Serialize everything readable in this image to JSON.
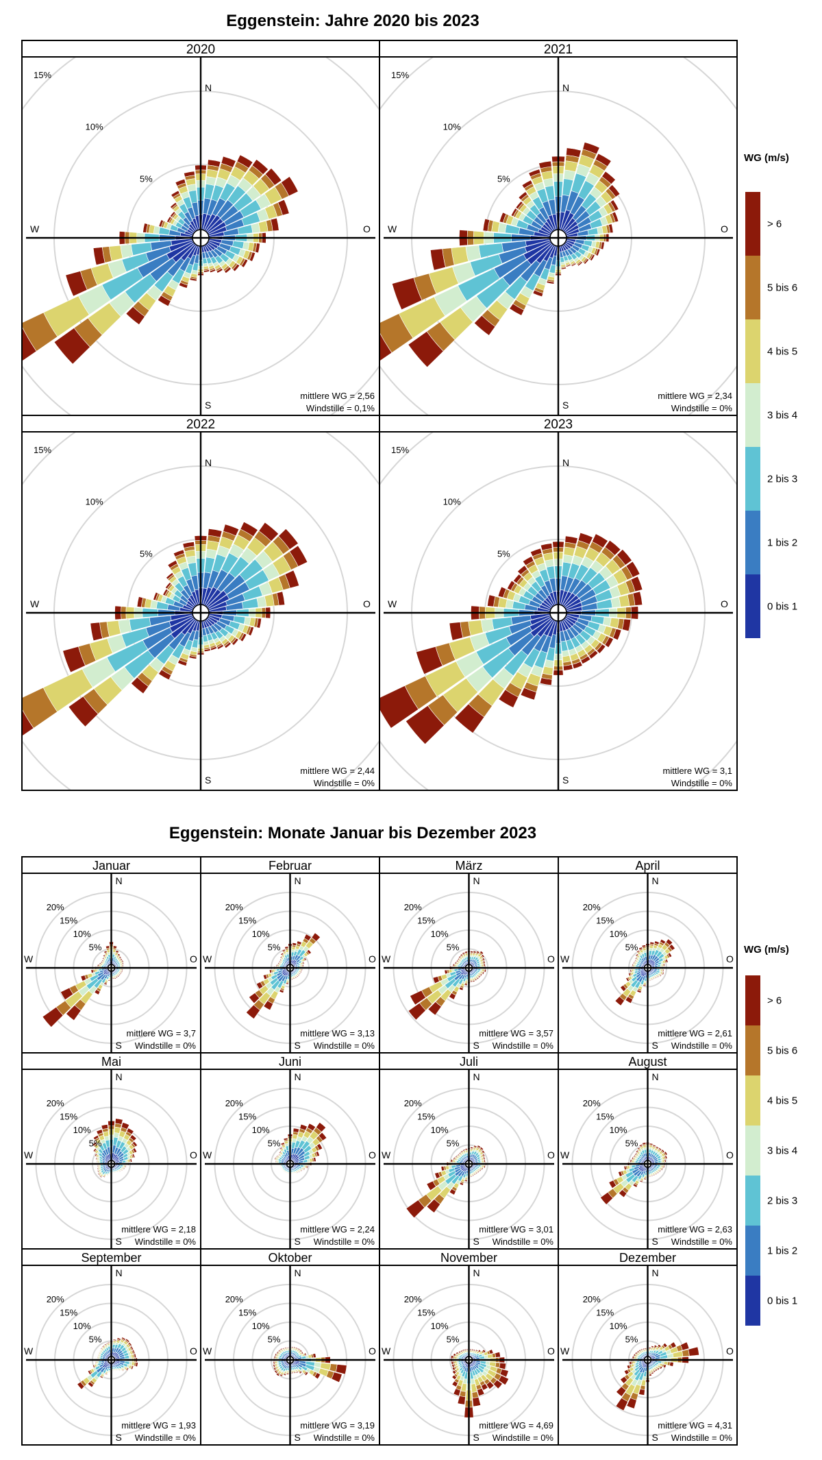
{
  "chart_data": [
    {
      "type": "windrose",
      "title": "Eggenstein: Jahre 2020 bis 2023",
      "legend_title": "WG (m/s)",
      "legend": [
        "> 6",
        "5 bis 6",
        "4 bis 5",
        "3 bis 4",
        "2 bis 3",
        "1 bis 2",
        "0 bis 1"
      ],
      "legend_colors": [
        "#8c1a0a",
        "#b5762a",
        "#dcd46e",
        "#d2edcf",
        "#5fc3d4",
        "#3a7dc2",
        "#1f36a3"
      ],
      "ring_percent": [
        5,
        10,
        15
      ],
      "ring_labels": [
        "5%",
        "10%",
        "15%"
      ],
      "directions": {
        "n": "N",
        "e": "O",
        "s": "S",
        "w": "W"
      },
      "stat_mean_label": "mittlere WG",
      "stat_calm_label": "Windstille",
      "panels": [
        {
          "title": "2020",
          "mean": "2,56",
          "calm": "0,1%",
          "mean_text": "mittlere WG = 2,56",
          "calm_text": "Windstille = 0,1%",
          "totals": [
            4.4,
            4.8,
            5.2,
            5.7,
            6.0,
            6.2,
            6.8,
            5.7,
            4.8,
            3.9,
            3.5,
            3.3,
            3.0,
            2.7,
            2.4,
            2.1,
            1.9,
            1.8,
            2.0,
            2.4,
            3.0,
            4.6,
            6.7,
            11.7,
            15.6,
            9.0,
            6.8,
            5.0,
            3.4,
            2.4,
            2.0,
            2.0,
            2.4,
            3.0,
            3.6,
            4.0
          ]
        },
        {
          "title": "2021",
          "mean": "2,34",
          "calm": "0%",
          "mean_text": "mittlere WG = 2,34",
          "calm_text": "Windstille = 0%",
          "totals": [
            5.0,
            5.6,
            6.2,
            5.8,
            5.0,
            4.6,
            4.0,
            3.7,
            3.2,
            2.9,
            2.6,
            2.4,
            2.2,
            2.0,
            1.8,
            1.6,
            1.5,
            1.6,
            2.0,
            2.6,
            3.6,
            5.3,
            7.6,
            12.0,
            15.8,
            11.2,
            8.2,
            6.2,
            4.6,
            3.6,
            3.0,
            3.0,
            3.3,
            3.8,
            4.3,
            4.7
          ]
        },
        {
          "title": "2022",
          "mean": "2,44",
          "calm": "0%",
          "mean_text": "mittlere WG = 2,44",
          "calm_text": "Windstille = 0%",
          "totals": [
            4.7,
            5.2,
            5.7,
            6.3,
            7.0,
            7.6,
            7.5,
            6.4,
            5.2,
            4.2,
            3.6,
            3.2,
            2.9,
            2.6,
            2.4,
            2.2,
            2.1,
            2.1,
            2.3,
            2.6,
            3.2,
            4.5,
            6.2,
            10.5,
            16.2,
            9.2,
            7.0,
            5.3,
            3.8,
            2.8,
            2.3,
            2.4,
            2.8,
            3.4,
            3.9,
            4.3
          ]
        },
        {
          "title": "2023",
          "mean": "3,1",
          "calm": "0%",
          "mean_text": "mittlere WG = 3,1",
          "calm_text": "Windstille = 0%",
          "totals": [
            4.3,
            4.7,
            5.1,
            5.4,
            5.5,
            5.6,
            5.6,
            5.4,
            5.2,
            4.9,
            4.4,
            3.9,
            3.6,
            3.4,
            3.3,
            3.3,
            3.4,
            3.4,
            3.7,
            4.4,
            5.6,
            6.6,
            9.5,
            12.2,
            13.3,
            9.5,
            6.9,
            5.4,
            4.3,
            3.7,
            3.3,
            3.2,
            3.4,
            3.7,
            4.0,
            4.2
          ]
        }
      ]
    },
    {
      "type": "windrose",
      "title": "Eggenstein: Monate Januar bis Dezember 2023",
      "legend_title": "WG (m/s)",
      "legend": [
        "> 6",
        "5 bis 6",
        "4 bis 5",
        "3 bis 4",
        "2 bis 3",
        "1 bis 2",
        "0 bis 1"
      ],
      "legend_colors": [
        "#8c1a0a",
        "#b5762a",
        "#dcd46e",
        "#d2edcf",
        "#5fc3d4",
        "#3a7dc2",
        "#1f36a3"
      ],
      "ring_percent": [
        5,
        10,
        15,
        20
      ],
      "ring_labels": [
        "5%",
        "10%",
        "15%",
        "20%"
      ],
      "directions": {
        "n": "N",
        "e": "O",
        "s": "S",
        "w": "W"
      },
      "panels": [
        {
          "title": "Januar",
          "mean": "3,7",
          "calm": "0%",
          "mean_text": "mittlere WG = 3,7",
          "calm_text": "Windstille = 0%",
          "totals": [
            6.0,
            5.0,
            3.9,
            3.3,
            2.9,
            2.7,
            2.7,
            2.5,
            2.3,
            2.2,
            2.2,
            2.2,
            2.1,
            2.1,
            2.1,
            2.1,
            2.2,
            2.1,
            2.2,
            2.6,
            3.8,
            7.0,
            16.2,
            21.5,
            14.0,
            7.5,
            4.5,
            3.4,
            2.8,
            2.4,
            2.2,
            2.2,
            2.5,
            3.0,
            3.8,
            5.0
          ]
        },
        {
          "title": "Februar",
          "mean": "3,13",
          "calm": "0%",
          "mean_text": "mittlere WG = 3,13",
          "calm_text": "Windstille = 0%",
          "totals": [
            5.5,
            5.8,
            6.5,
            9.0,
            10.5,
            6.0,
            3.9,
            3.0,
            2.7,
            2.5,
            2.4,
            2.3,
            2.2,
            2.2,
            2.2,
            2.2,
            2.2,
            2.3,
            2.6,
            3.5,
            6.0,
            11.5,
            15.7,
            12.5,
            9.0,
            6.5,
            4.6,
            3.4,
            2.8,
            2.5,
            2.4,
            2.5,
            2.9,
            3.5,
            4.2,
            4.8
          ]
        },
        {
          "title": "März",
          "mean": "3,57",
          "calm": "0%",
          "mean_text": "mittlere WG = 3,57",
          "calm_text": "Windstille = 0%",
          "totals": [
            3.6,
            3.6,
            3.8,
            4.1,
            4.6,
            4.2,
            3.8,
            3.6,
            3.5,
            3.6,
            3.7,
            3.3,
            3.0,
            2.9,
            2.9,
            2.9,
            3.0,
            2.9,
            3.2,
            3.8,
            5.3,
            8.4,
            14.5,
            18.8,
            16.4,
            9.0,
            5.6,
            4.2,
            3.4,
            3.0,
            2.8,
            2.8,
            3.0,
            3.2,
            3.4,
            3.5
          ]
        },
        {
          "title": "April",
          "mean": "2,61",
          "calm": "0%",
          "mean_text": "mittlere WG = 2,61",
          "calm_text": "Windstille = 0%",
          "totals": [
            5.5,
            6.0,
            6.5,
            7.5,
            8.5,
            8.0,
            6.2,
            4.7,
            3.7,
            3.2,
            3.4,
            3.6,
            3.2,
            2.8,
            2.6,
            2.5,
            2.5,
            2.6,
            3.0,
            4.0,
            6.0,
            9.5,
            11.4,
            8.0,
            5.5,
            4.4,
            3.8,
            3.5,
            3.3,
            3.1,
            3.0,
            3.2,
            3.7,
            4.3,
            4.8,
            5.2
          ]
        },
        {
          "title": "Mai",
          "mean": "2,18",
          "calm": "0%",
          "mean_text": "mittlere WG = 2,18",
          "calm_text": "Windstille = 0%",
          "totals": [
            10.5,
            11.2,
            10.5,
            9.6,
            8.6,
            7.6,
            6.6,
            5.6,
            4.6,
            3.7,
            3.1,
            2.8,
            2.5,
            2.2,
            2.0,
            1.8,
            1.7,
            1.6,
            1.7,
            2.0,
            2.5,
            3.1,
            3.6,
            3.5,
            3.2,
            3.0,
            2.8,
            2.8,
            3.0,
            3.4,
            4.0,
            5.0,
            6.2,
            7.5,
            8.6,
            9.6
          ]
        },
        {
          "title": "Juni",
          "mean": "2,24",
          "calm": "0%",
          "mean_text": "mittlere WG = 2,24",
          "calm_text": "Windstille = 0%",
          "totals": [
            7.0,
            8.6,
            10.0,
            11.0,
            12.6,
            11.0,
            8.6,
            7.2,
            6.0,
            4.8,
            3.9,
            3.2,
            2.7,
            2.4,
            2.2,
            2.0,
            1.9,
            1.8,
            1.8,
            1.8,
            1.8,
            1.8,
            1.8,
            1.8,
            1.8,
            1.8,
            2.0,
            2.4,
            3.0,
            3.4,
            3.2,
            3.0,
            3.3,
            4.0,
            5.0,
            6.0
          ]
        },
        {
          "title": "Juli",
          "mean": "3,01",
          "calm": "0%",
          "mean_text": "mittlere WG = 3,01",
          "calm_text": "Windstille = 0%",
          "totals": [
            3.3,
            3.6,
            4.2,
            4.6,
            4.6,
            4.3,
            3.8,
            3.6,
            3.5,
            3.8,
            3.5,
            3.0,
            2.7,
            2.5,
            2.4,
            2.4,
            2.5,
            2.6,
            3.0,
            3.8,
            5.0,
            8.2,
            15.0,
            19.5,
            11.5,
            8.5,
            6.5,
            5.0,
            4.0,
            3.4,
            3.1,
            2.9,
            2.9,
            3.0,
            3.1,
            3.2
          ]
        },
        {
          "title": "August",
          "mean": "2,63",
          "calm": "0%",
          "mean_text": "mittlere WG = 2,63",
          "calm_text": "Windstille = 0%",
          "totals": [
            4.8,
            4.6,
            4.4,
            4.3,
            4.4,
            4.6,
            4.9,
            4.5,
            4.0,
            3.8,
            3.6,
            3.3,
            3.0,
            2.8,
            2.7,
            2.6,
            2.6,
            2.6,
            2.8,
            3.3,
            4.2,
            6.0,
            10.0,
            14.5,
            10.5,
            7.2,
            5.4,
            4.4,
            3.8,
            3.5,
            3.3,
            3.3,
            3.6,
            4.0,
            4.5,
            4.8
          ]
        },
        {
          "title": "September",
          "mean": "1,93",
          "calm": "0%",
          "mean_text": "mittlere WG = 1,93",
          "calm_text": "Windstille = 0%",
          "totals": [
            4.0,
            4.6,
            5.2,
            5.8,
            6.0,
            5.8,
            5.6,
            5.6,
            5.7,
            6.0,
            6.2,
            5.2,
            4.2,
            3.4,
            2.8,
            2.4,
            2.2,
            2.1,
            2.2,
            2.6,
            3.2,
            4.5,
            8.0,
            10.2,
            6.0,
            4.2,
            3.4,
            3.0,
            2.9,
            2.9,
            3.0,
            3.0,
            3.2,
            3.4,
            3.6,
            3.8
          ]
        },
        {
          "title": "Oktober",
          "mean": "3,19",
          "calm": "0%",
          "mean_text": "mittlere WG = 3,19",
          "calm_text": "Windstille = 0%",
          "totals": [
            2.5,
            2.6,
            2.7,
            2.8,
            2.9,
            3.0,
            3.0,
            3.6,
            6.0,
            9.8,
            14.2,
            13.4,
            8.0,
            5.0,
            3.6,
            3.0,
            2.8,
            2.7,
            2.8,
            3.0,
            3.4,
            4.0,
            4.4,
            4.2,
            4.0,
            3.8,
            3.6,
            3.5,
            3.4,
            3.3,
            3.1,
            3.0,
            2.9,
            2.7,
            2.6,
            2.5
          ]
        },
        {
          "title": "November",
          "mean": "4,69",
          "calm": "0%",
          "mean_text": "mittlere WG = 4,69",
          "calm_text": "Windstille = 0%",
          "totals": [
            2.0,
            2.0,
            2.1,
            2.2,
            2.5,
            3.0,
            4.0,
            5.8,
            7.5,
            8.6,
            9.0,
            10.0,
            10.8,
            10.0,
            8.6,
            8.0,
            9.0,
            11.5,
            14.4,
            11.0,
            9.0,
            7.0,
            5.5,
            4.5,
            4.0,
            3.8,
            3.8,
            4.0,
            3.9,
            3.4,
            2.9,
            2.5,
            2.3,
            2.2,
            2.1,
            2.0
          ]
        },
        {
          "title": "Dezember",
          "mean": "4,31",
          "calm": "0%",
          "mean_text": "mittlere WG = 4,31",
          "calm_text": "Windstille = 0%",
          "totals": [
            2.3,
            2.5,
            3.0,
            3.5,
            4.2,
            5.5,
            7.5,
            10.5,
            12.8,
            10.0,
            6.0,
            4.2,
            3.4,
            3.0,
            2.8,
            2.8,
            3.0,
            3.4,
            5.0,
            8.5,
            12.5,
            14.0,
            11.0,
            8.0,
            6.0,
            4.8,
            4.0,
            3.5,
            3.2,
            3.0,
            2.8,
            2.6,
            2.5,
            2.4,
            2.3,
            2.3
          ]
        }
      ]
    }
  ]
}
